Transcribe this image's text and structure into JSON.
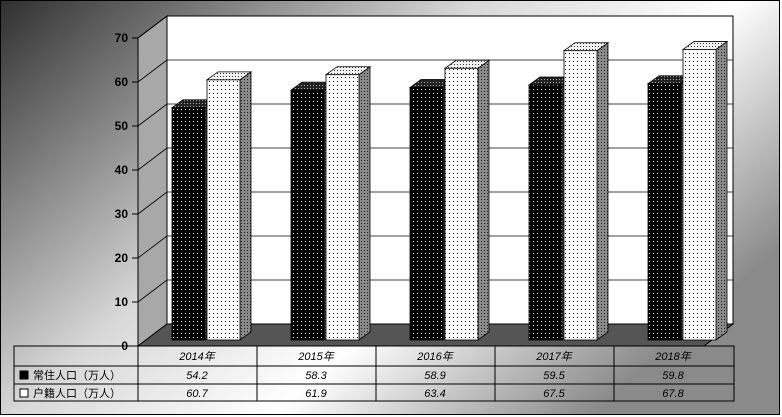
{
  "chart_data": {
    "type": "bar",
    "categories": [
      "2014年",
      "2015年",
      "2016年",
      "2017年",
      "2018年"
    ],
    "series": [
      {
        "name": "常住人口（万人）",
        "values": [
          54.2,
          58.3,
          58.9,
          59.5,
          59.8
        ],
        "labels": [
          "54.2",
          "58.3",
          "58.9",
          "59.5",
          "59.8"
        ],
        "pattern": "black-dotted"
      },
      {
        "name": "户籍人口（万人）",
        "values": [
          60.7,
          61.9,
          63.4,
          67.5,
          67.8
        ],
        "labels": [
          "60.7",
          "61.9",
          "63.4",
          "67.5",
          "67.8"
        ],
        "pattern": "white-dotted"
      }
    ],
    "ylim": [
      0,
      70
    ],
    "yticks": [
      "0",
      "10",
      "20",
      "30",
      "40",
      "50",
      "60",
      "70"
    ],
    "grid": true,
    "data_table": true,
    "three_d": true
  }
}
